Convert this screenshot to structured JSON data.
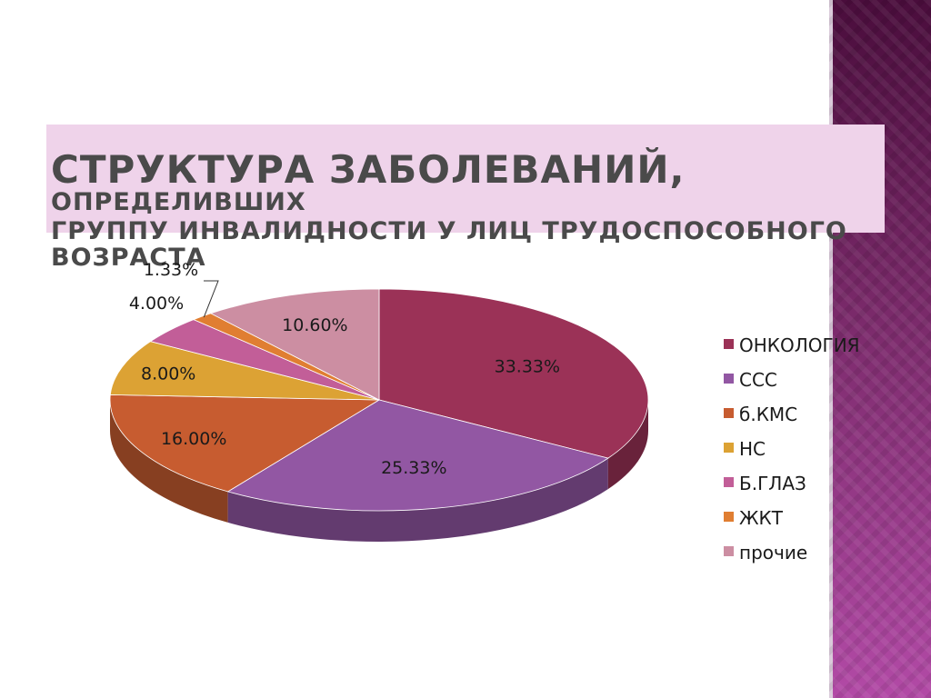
{
  "title": {
    "main": "Структура заболеваний,",
    "rest": " определивших",
    "line2": "группу инвалидности у лиц трудоспособного возраста"
  },
  "chart_data": {
    "type": "pie",
    "style": "3d",
    "legend_position": "right",
    "slices": [
      {
        "label": "ОНКОЛОГИЯ",
        "value": 33.33,
        "display": "33.33%",
        "color": "#9b3257"
      },
      {
        "label": "ССС",
        "value": 25.33,
        "display": "25.33%",
        "color": "#9257a3"
      },
      {
        "label": "б.КМС",
        "value": 16.0,
        "display": "16.00%",
        "color": "#c75c30"
      },
      {
        "label": "НС",
        "value": 8.0,
        "display": "8.00%",
        "color": "#dca234"
      },
      {
        "label": "Б.ГЛАЗ",
        "value": 4.0,
        "display": "4.00%",
        "color": "#c25e98"
      },
      {
        "label": "ЖКТ",
        "value": 1.33,
        "display": "1.33%",
        "color": "#e07e32"
      },
      {
        "label": "прочие",
        "value": 10.6,
        "display": "10.60%",
        "color": "#cc8ea2"
      }
    ]
  },
  "colors": {
    "title_band": "#efd3ea",
    "title_text": "#4a4a4a",
    "side_stripe_top": "#4a0d3c",
    "side_stripe_bottom": "#b24aa6"
  }
}
